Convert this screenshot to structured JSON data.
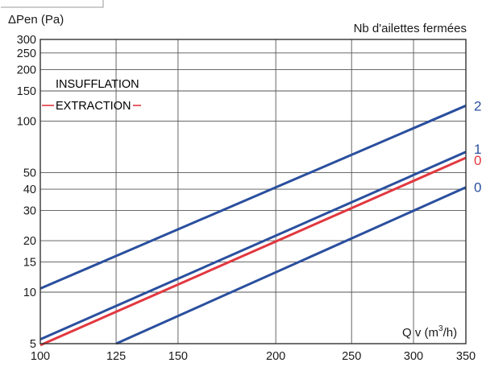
{
  "chart_data": {
    "type": "line",
    "ylabel": "ΔPen (Pa)",
    "xlabel_main": "Q v (m",
    "xlabel_sup": "3",
    "xlabel_tail": "/h)",
    "legend_title": "Nb d'ailettes fermées",
    "x_scale": "log",
    "y_scale": "log",
    "xlim": [
      100,
      350
    ],
    "ylim": [
      5,
      300
    ],
    "x_ticks": [
      100,
      125,
      150,
      200,
      250,
      300,
      350
    ],
    "y_ticks": [
      5,
      10,
      15,
      20,
      30,
      40,
      50,
      100,
      150,
      200,
      250,
      300
    ],
    "grid": true,
    "legend": [
      {
        "label": "INSUFFLATION",
        "color": "#2a4f9e"
      },
      {
        "label": "EXTRACTION",
        "color": "#e2373f"
      }
    ],
    "series": [
      {
        "name": "2",
        "group": "INSUFFLATION",
        "color": "#2a4f9e",
        "x": [
          100,
          350
        ],
        "y": [
          10.5,
          123
        ]
      },
      {
        "name": "1",
        "group": "INSUFFLATION",
        "color": "#2a4f9e",
        "x": [
          100,
          350
        ],
        "y": [
          5.3,
          66
        ]
      },
      {
        "name": "0",
        "group": "EXTRACTION",
        "color": "#e2373f",
        "x": [
          100,
          350
        ],
        "y": [
          4.9,
          61
        ]
      },
      {
        "name": "0",
        "group": "INSUFFLATION",
        "color": "#2a4f9e",
        "x": [
          125,
          350
        ],
        "y": [
          5,
          41
        ]
      }
    ]
  }
}
